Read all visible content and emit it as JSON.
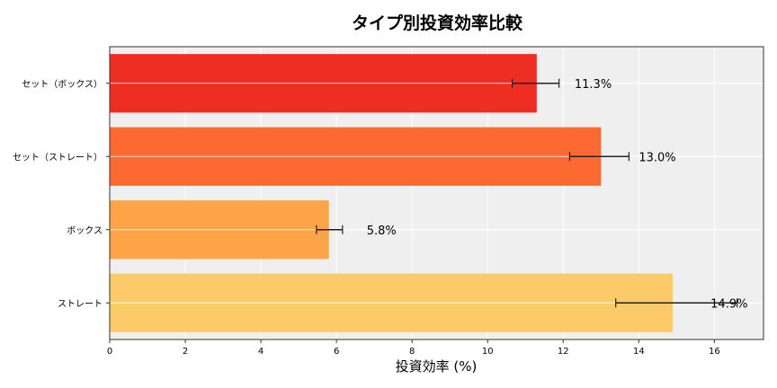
{
  "chart_data": {
    "type": "bar",
    "orientation": "horizontal",
    "title": "タイプ別投資効率比較",
    "xlabel": "投資効率 (%)",
    "ylabel": "",
    "xlim": [
      0,
      17.3
    ],
    "xticks": [
      "0",
      "2",
      "4",
      "6",
      "8",
      "10",
      "12",
      "14",
      "16"
    ],
    "grid": true,
    "background": "#efefef",
    "categories": [
      "セット（ボックス）",
      "セット（ストレート）",
      "ボックス",
      "ストレート"
    ],
    "values": [
      11.3,
      13.0,
      5.8,
      14.9
    ],
    "error_low": [
      10.65,
      12.17,
      5.47,
      13.39
    ],
    "error_high": [
      11.89,
      13.74,
      6.16,
      16.6
    ],
    "data_labels": [
      "11.3%",
      "13.0%",
      "5.8%",
      "14.9%"
    ],
    "colors": [
      "#ee2e22",
      "#fc6a32",
      "#fca447",
      "#fdca6a"
    ]
  }
}
